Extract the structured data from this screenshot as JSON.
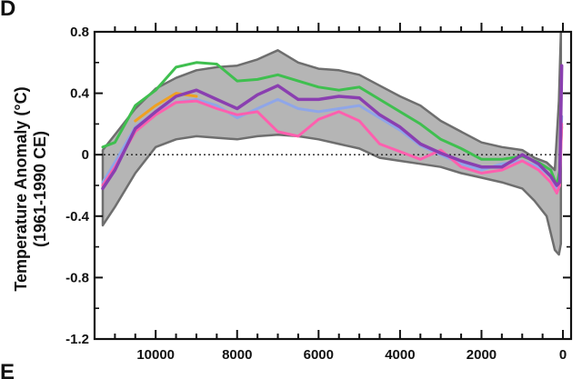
{
  "panel_letters": {
    "top": "D",
    "bottom": "E"
  },
  "chart_data": {
    "type": "line",
    "ylabel_line1": "Temperature Anomaly (°C)",
    "ylabel_line2": "(1961-1990 CE)",
    "xlabel": "",
    "xlim": [
      11500,
      -200
    ],
    "ylim": [
      -1.2,
      0.8
    ],
    "x_ticks": [
      10000,
      8000,
      6000,
      4000,
      2000,
      0
    ],
    "x_tick_labels": [
      "10000",
      "8000",
      "6000",
      "4000",
      "2000",
      "0"
    ],
    "y_ticks": [
      0.8,
      0.4,
      0,
      -0.4,
      -0.8,
      -1.2
    ],
    "y_tick_labels": [
      "0.8",
      "0.4",
      "0",
      "-0.4",
      "-0.8",
      "-1.2"
    ],
    "zero_line": "dotted",
    "grid": false,
    "uncertainty_band": {
      "color": "#b5b5b5",
      "edge_color": "#6e6e6e",
      "x": [
        11300,
        11000,
        10500,
        10000,
        9500,
        9000,
        8500,
        8000,
        7500,
        7000,
        6500,
        6000,
        5500,
        5000,
        4500,
        4000,
        3500,
        3000,
        2500,
        2000,
        1500,
        1000,
        700,
        400,
        200,
        100,
        50
      ],
      "upper": [
        0.03,
        0.13,
        0.3,
        0.43,
        0.5,
        0.55,
        0.57,
        0.58,
        0.62,
        0.68,
        0.6,
        0.56,
        0.55,
        0.52,
        0.45,
        0.38,
        0.32,
        0.22,
        0.15,
        0.08,
        0.05,
        0.03,
        -0.02,
        -0.05,
        -0.1,
        0.35,
        0.8
      ],
      "lower": [
        -0.46,
        -0.34,
        -0.12,
        0.05,
        0.1,
        0.12,
        0.11,
        0.1,
        0.12,
        0.13,
        0.12,
        0.1,
        0.07,
        0.04,
        -0.02,
        -0.04,
        -0.06,
        -0.08,
        -0.12,
        -0.15,
        -0.18,
        -0.22,
        -0.3,
        -0.4,
        -0.62,
        -0.65,
        -0.58
      ]
    },
    "series": [
      {
        "color": "#3fbf4f",
        "x": [
          11300,
          11000,
          10500,
          10000,
          9500,
          9000,
          8500,
          8000,
          7500,
          7000,
          6500,
          6000,
          5500,
          5000,
          4500,
          4000,
          3500,
          3000,
          2500,
          2000,
          1500,
          1000,
          600,
          300,
          150,
          80,
          30
        ],
        "y": [
          0.05,
          0.08,
          0.32,
          0.42,
          0.57,
          0.6,
          0.59,
          0.48,
          0.49,
          0.52,
          0.48,
          0.44,
          0.42,
          0.44,
          0.36,
          0.28,
          0.2,
          0.1,
          0.04,
          -0.03,
          -0.03,
          -0.01,
          -0.05,
          -0.1,
          -0.2,
          -0.1,
          0.18
        ]
      },
      {
        "color": "#8fa6e8",
        "x": [
          11300,
          11000,
          10500,
          10000,
          9500,
          9000,
          8500,
          8000,
          7500,
          7000,
          6500,
          6000,
          5500,
          5000,
          4500,
          4000,
          3500,
          3000,
          2500,
          2000,
          1500,
          1000,
          600,
          300,
          150,
          80,
          30
        ],
        "y": [
          -0.18,
          -0.05,
          0.18,
          0.28,
          0.34,
          0.36,
          0.32,
          0.24,
          0.3,
          0.36,
          0.3,
          0.28,
          0.3,
          0.32,
          0.24,
          0.16,
          0.06,
          0.0,
          -0.06,
          -0.1,
          -0.06,
          -0.04,
          -0.08,
          -0.14,
          -0.22,
          -0.18,
          0.25
        ]
      },
      {
        "color": "#ff5fae",
        "x": [
          11300,
          11000,
          10500,
          10000,
          9500,
          9000,
          8500,
          8000,
          7500,
          7000,
          6500,
          6000,
          5500,
          5000,
          4500,
          4000,
          3500,
          3000,
          2500,
          2000,
          1500,
          1000,
          600,
          300,
          150,
          80,
          30
        ],
        "y": [
          -0.2,
          -0.08,
          0.15,
          0.26,
          0.34,
          0.35,
          0.3,
          0.26,
          0.28,
          0.15,
          0.12,
          0.23,
          0.28,
          0.22,
          0.07,
          0.02,
          -0.03,
          0.03,
          -0.08,
          -0.12,
          -0.1,
          -0.04,
          -0.1,
          -0.18,
          -0.25,
          -0.2,
          0.2
        ]
      },
      {
        "color": "#f0a020",
        "x": [
          10500,
          10000,
          9500,
          9000
        ],
        "y": [
          0.22,
          0.32,
          0.4,
          0.38
        ]
      },
      {
        "color": "#8a3fb0",
        "x": [
          11300,
          11000,
          10500,
          10000,
          9500,
          9000,
          8500,
          8000,
          7500,
          7000,
          6500,
          6000,
          5500,
          5000,
          4500,
          4000,
          3500,
          3000,
          2500,
          2000,
          1500,
          1000,
          600,
          300,
          150,
          80,
          30
        ],
        "y": [
          -0.22,
          -0.1,
          0.17,
          0.28,
          0.38,
          0.42,
          0.36,
          0.3,
          0.39,
          0.45,
          0.36,
          0.36,
          0.38,
          0.37,
          0.26,
          0.18,
          0.07,
          0.01,
          -0.04,
          -0.08,
          -0.08,
          0.0,
          -0.06,
          -0.14,
          -0.2,
          -0.18,
          0.58
        ]
      }
    ]
  }
}
